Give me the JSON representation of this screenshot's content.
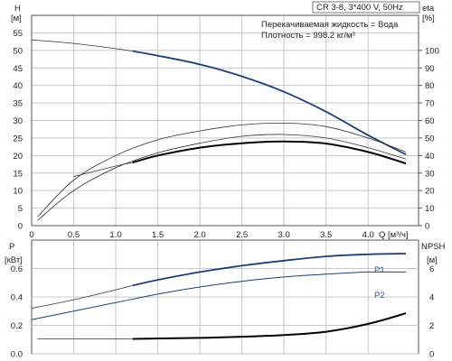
{
  "chart_data": [
    {
      "type": "line",
      "title": "CR 3-8, 3*400 V, 50Hz",
      "annotations": [
        "Перекачиваемая жидкость = Вода",
        "Плотность = 998.2 кг/м³"
      ],
      "xlabel": "Q [м³/ч]",
      "ylabel_left": [
        "H",
        "[м]"
      ],
      "ylabel_right": [
        "eta",
        "[%]"
      ],
      "xlim": [
        0,
        4.6
      ],
      "ylim_left": [
        0,
        60
      ],
      "ylim_right": [
        0,
        120
      ],
      "x_ticks": [
        "0",
        "0.5",
        "1.0",
        "1.5",
        "2.0",
        "2.5",
        "3.0",
        "3.5",
        "4.0"
      ],
      "y_ticks_left": [
        "0",
        "5",
        "10",
        "15",
        "20",
        "25",
        "30",
        "35",
        "40",
        "45",
        "50",
        "55"
      ],
      "y_ticks_right": [
        "0",
        "10",
        "20",
        "30",
        "40",
        "50",
        "60",
        "70",
        "80",
        "90",
        "100"
      ],
      "grid": true,
      "series": [
        {
          "axis": "left",
          "style": "thin",
          "x": [
            0,
            0.5,
            1.0,
            1.2
          ],
          "y": [
            53,
            52,
            50.5,
            49.8
          ]
        },
        {
          "axis": "left",
          "style": "blue",
          "x": [
            1.2,
            1.5,
            2.0,
            2.5,
            3.0,
            3.5,
            4.0,
            4.45
          ],
          "y": [
            49.8,
            48.5,
            46,
            42.6,
            38.2,
            32.5,
            25.8,
            20.3
          ]
        },
        {
          "axis": "right",
          "style": "thin",
          "x": [
            0.07,
            0.5,
            1.0,
            1.5,
            2.0,
            2.5,
            3.0,
            3.5,
            4.0,
            4.45
          ],
          "y": [
            5,
            26,
            40,
            49,
            54,
            57.5,
            58.5,
            56.5,
            50,
            42
          ]
        },
        {
          "axis": "right",
          "style": "thin",
          "x": [
            0.07,
            0.5,
            1.0,
            1.5,
            2.0,
            2.5,
            3.0,
            3.5,
            4.0,
            4.45
          ],
          "y": [
            3,
            20,
            33,
            41.5,
            47,
            51,
            52,
            50,
            44.5,
            38
          ]
        },
        {
          "axis": "right",
          "style": "thin",
          "x": [
            0.5,
            1.0,
            1.2
          ],
          "y": [
            28,
            34,
            36
          ]
        },
        {
          "axis": "right",
          "style": "black",
          "x": [
            1.2,
            1.5,
            2.0,
            2.5,
            3.0,
            3.5,
            4.0,
            4.45
          ],
          "y": [
            36,
            40,
            44.5,
            47,
            48,
            46.8,
            42,
            35.5
          ]
        }
      ]
    },
    {
      "type": "line",
      "xlim": [
        0,
        4.6
      ],
      "ylabel_left": [
        "P",
        "[кВт]"
      ],
      "ylabel_right": [
        "NPSH",
        "[м]"
      ],
      "ylim_left": [
        0,
        0.8
      ],
      "ylim_right": [
        0,
        8
      ],
      "y_ticks_left": [
        "0.0",
        "0.2",
        "0.4",
        "0.6"
      ],
      "y_ticks_right": [
        "0",
        "2",
        "4",
        "6"
      ],
      "grid": true,
      "series": [
        {
          "name": "P1",
          "axis": "left",
          "style": "thin",
          "x": [
            0,
            0.5,
            1.0,
            1.2
          ],
          "y": [
            0.32,
            0.38,
            0.45,
            0.48
          ]
        },
        {
          "name": "P1",
          "axis": "left",
          "style": "blue",
          "x": [
            1.2,
            1.5,
            2.0,
            2.5,
            3.0,
            3.5,
            4.0,
            4.45
          ],
          "y": [
            0.48,
            0.52,
            0.575,
            0.62,
            0.655,
            0.685,
            0.7,
            0.705
          ]
        },
        {
          "name": "P2",
          "axis": "left",
          "style": "blue-thin",
          "x": [
            0,
            0.5,
            1.0,
            1.5,
            2.0,
            2.5,
            3.0,
            3.5,
            4.0,
            4.45
          ],
          "y": [
            0.24,
            0.3,
            0.36,
            0.42,
            0.47,
            0.51,
            0.54,
            0.56,
            0.575,
            0.575
          ]
        },
        {
          "axis": "right",
          "style": "thin",
          "x": [
            0.07,
            1.2
          ],
          "y": [
            1.05,
            1.05
          ]
        },
        {
          "axis": "right",
          "style": "black",
          "x": [
            1.2,
            2.0,
            2.5,
            3.0,
            3.5,
            4.0,
            4.45
          ],
          "y": [
            1.05,
            1.12,
            1.2,
            1.32,
            1.55,
            2.1,
            2.85
          ]
        }
      ],
      "series_labels": [
        "P1",
        "P2"
      ]
    }
  ]
}
